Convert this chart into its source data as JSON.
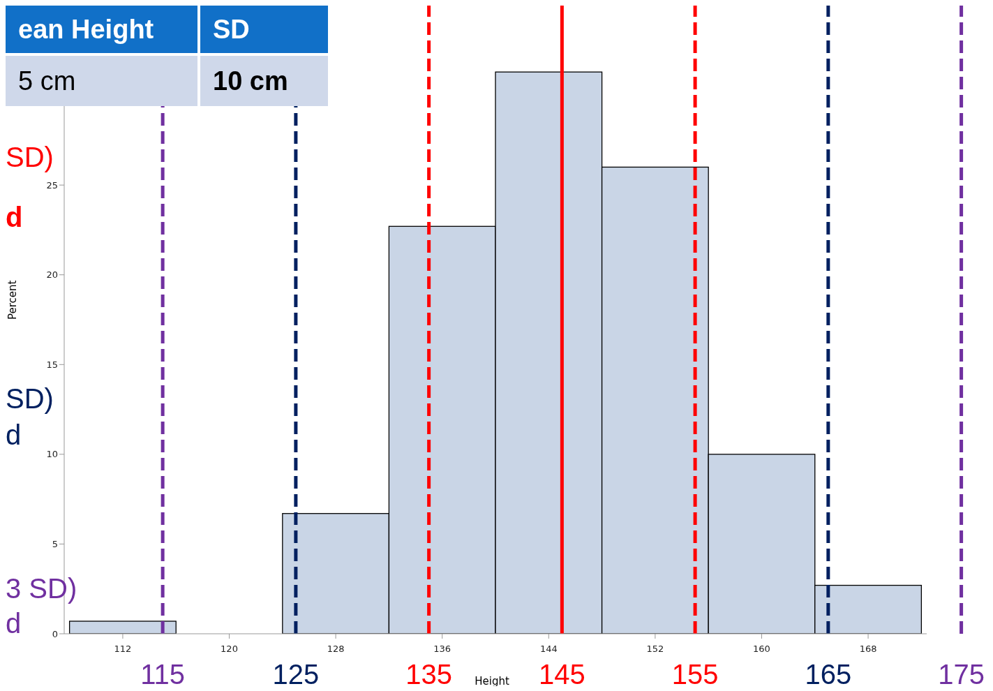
{
  "chart_data": {
    "type": "histogram",
    "xlabel": "Height",
    "ylabel": "Percent",
    "bins": [
      108,
      116,
      124,
      132,
      140,
      148,
      156,
      164,
      172
    ],
    "values": [
      0.7,
      0,
      6.7,
      22.7,
      31.3,
      26.0,
      10.0,
      2.7
    ],
    "color": "#c9d5e6",
    "xlim": [
      107.6,
      172.4
    ],
    "xticks": [
      112,
      120,
      128,
      136,
      144,
      152,
      160,
      168
    ],
    "ylim": [
      0,
      35
    ],
    "yticks": [
      0,
      5,
      10,
      15,
      20,
      25
    ],
    "ref_lines": [
      {
        "axis": "x",
        "value": 115,
        "label": "115",
        "color": "#7030a0",
        "line_style": "dashed"
      },
      {
        "axis": "x",
        "value": 125,
        "label": "125",
        "color": "#002060",
        "line_style": "dashed"
      },
      {
        "axis": "x",
        "value": 135,
        "label": "135",
        "color": "#ff0000",
        "line_style": "dashed"
      },
      {
        "axis": "x",
        "value": 145,
        "label": "145",
        "color": "#ff0000",
        "line_style": "solid"
      },
      {
        "axis": "x",
        "value": 155,
        "label": "155",
        "color": "#ff0000",
        "line_style": "dashed"
      },
      {
        "axis": "x",
        "value": 165,
        "label": "165",
        "color": "#002060",
        "line_style": "dashed"
      },
      {
        "axis": "x",
        "value": 175,
        "label": "175",
        "color": "#7030a0",
        "line_style": "dashed"
      }
    ],
    "annotations": [
      "ean Height",
      "SD",
      "5 cm",
      "10 cm",
      "SD)",
      "d",
      "SD)",
      "d",
      "3 SD)",
      "d"
    ]
  }
}
